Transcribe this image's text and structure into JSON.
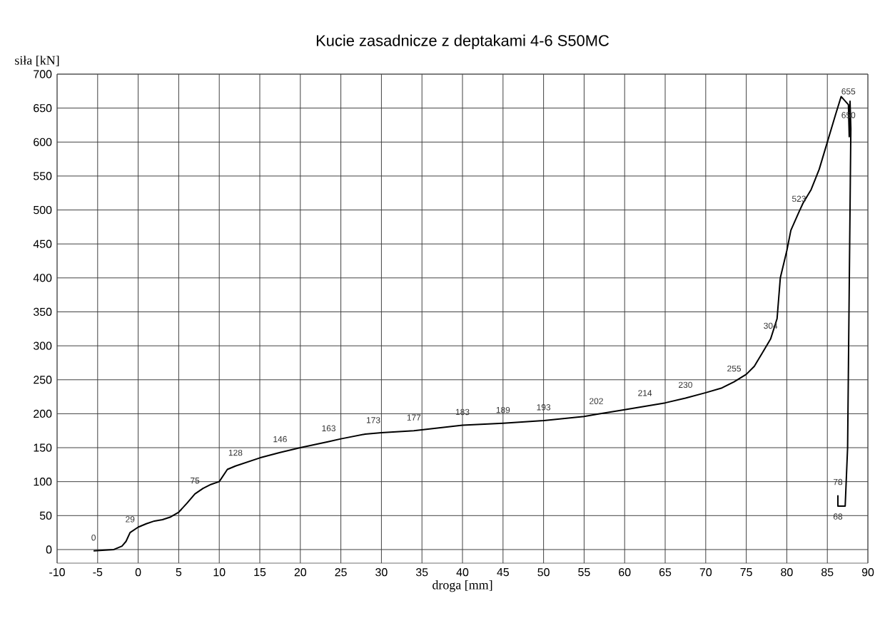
{
  "chart_data": {
    "type": "line",
    "title": "Kucie zasadnicze z deptakami 4-6 S50MC",
    "xlabel": "droga  [mm]",
    "ylabel": "siła [kN]",
    "xlim": [
      -10,
      90
    ],
    "xticks": [
      -10,
      -5,
      0,
      5,
      10,
      15,
      20,
      25,
      30,
      35,
      40,
      45,
      50,
      55,
      60,
      65,
      70,
      75,
      80,
      85,
      90
    ],
    "ylim": [
      -20,
      700
    ],
    "yticks": [
      0,
      50,
      100,
      150,
      200,
      250,
      300,
      350,
      400,
      450,
      500,
      550,
      600,
      650,
      700
    ],
    "grid": true,
    "marker": "none",
    "line_style": "solid",
    "series": [
      {
        "color": "#000000",
        "x": [
          -5.5,
          -3,
          -2,
          -1.5,
          -1,
          0,
          1,
          2,
          3,
          4,
          5,
          6,
          7,
          8,
          9,
          10,
          11,
          12,
          15,
          17.5,
          20,
          23.5,
          25,
          28,
          29,
          30,
          34,
          40,
          45,
          50,
          55,
          56.5,
          60,
          62.5,
          65,
          67.5,
          70,
          72,
          73.5,
          75,
          76,
          77,
          78,
          78.8,
          79.2,
          80,
          80.5,
          81.5,
          82,
          83,
          84,
          85,
          86,
          86.7,
          87.6,
          87.7,
          87.8,
          87.9,
          87.5,
          87.2,
          86.3,
          86.3
        ],
        "values": [
          -2,
          0,
          5,
          12,
          25,
          33,
          38,
          42,
          44,
          48,
          55,
          68,
          82,
          90,
          96,
          100,
          118,
          123,
          135,
          143,
          150,
          159,
          163,
          170,
          171,
          172,
          175,
          183,
          186,
          190,
          196,
          199,
          206,
          211,
          216,
          223,
          231,
          238,
          247,
          258,
          270,
          290,
          310,
          340,
          400,
          440,
          470,
          497,
          510,
          530,
          560,
          600,
          640,
          667,
          655,
          608,
          660,
          620,
          150,
          64,
          64,
          80
        ]
      }
    ],
    "annotations": [
      {
        "text": "0",
        "x": -5.5,
        "y": -2
      },
      {
        "text": "29",
        "x": -1,
        "y": 25
      },
      {
        "text": "75",
        "x": 7,
        "y": 82
      },
      {
        "text": "128",
        "x": 12,
        "y": 123
      },
      {
        "text": "146",
        "x": 17.5,
        "y": 143
      },
      {
        "text": "163",
        "x": 23.5,
        "y": 159
      },
      {
        "text": "173",
        "x": 29,
        "y": 171
      },
      {
        "text": "177",
        "x": 34,
        "y": 175
      },
      {
        "text": "183",
        "x": 40,
        "y": 183
      },
      {
        "text": "189",
        "x": 45,
        "y": 186
      },
      {
        "text": "193",
        "x": 50,
        "y": 190
      },
      {
        "text": "202",
        "x": 56.5,
        "y": 199
      },
      {
        "text": "214",
        "x": 62.5,
        "y": 211
      },
      {
        "text": "230",
        "x": 67.5,
        "y": 223
      },
      {
        "text": "255",
        "x": 73.5,
        "y": 247
      },
      {
        "text": "304",
        "x": 78,
        "y": 310
      },
      {
        "text": "523",
        "x": 81.5,
        "y": 497
      },
      {
        "text": "655",
        "x": 87.6,
        "y": 655
      },
      {
        "text": "650",
        "x": 87.6,
        "y": 655
      },
      {
        "text": "78",
        "x": 86.3,
        "y": 80
      },
      {
        "text": "68",
        "x": 86.3,
        "y": 64
      }
    ]
  }
}
